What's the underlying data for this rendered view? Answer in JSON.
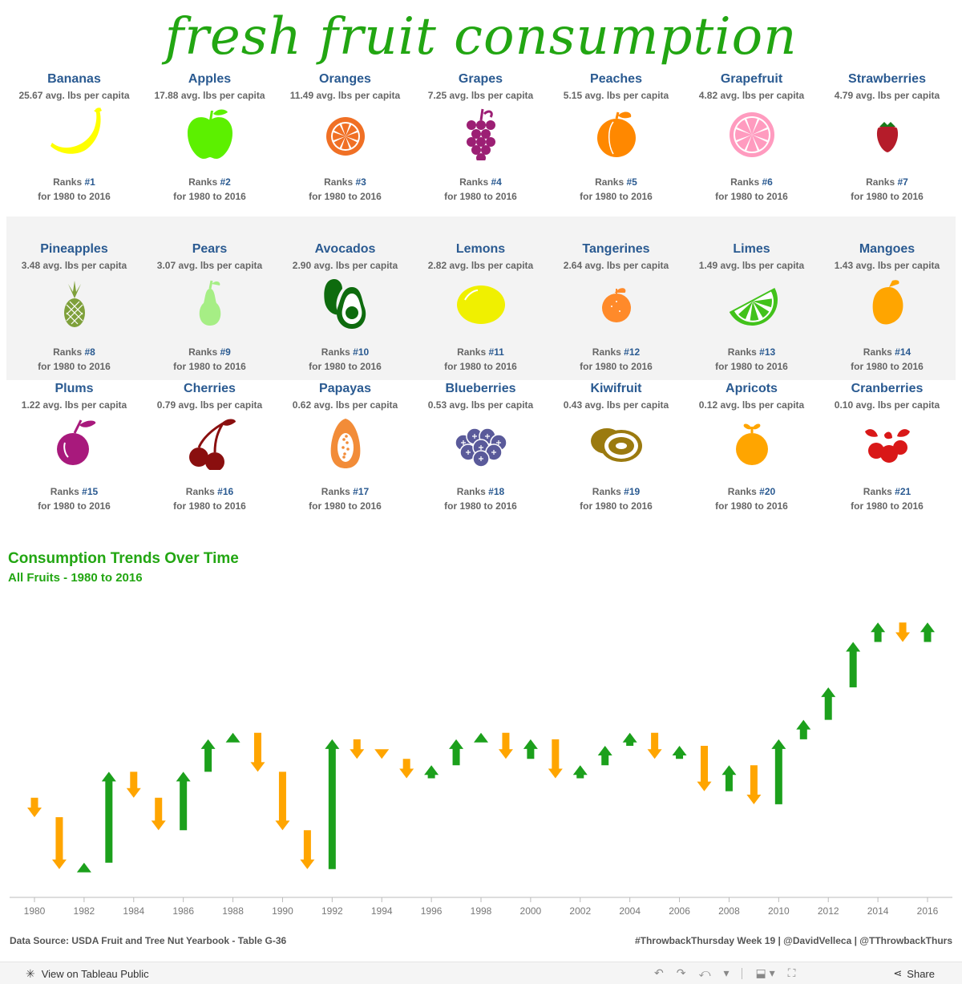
{
  "title": "fresh fruit consumption",
  "fruits": [
    {
      "name": "Bananas",
      "avg": "25.67 avg. lbs per capita",
      "rank_prefix": "Ranks ",
      "rank": "#1",
      "period": "for 1980 to 2016",
      "icon": "banana-icon",
      "color": "#ffff00"
    },
    {
      "name": "Apples",
      "avg": "17.88 avg. lbs per capita",
      "rank_prefix": "Ranks ",
      "rank": "#2",
      "period": "for 1980 to 2016",
      "icon": "apple-icon",
      "color": "#5cf000"
    },
    {
      "name": "Oranges",
      "avg": "11.49 avg. lbs per capita",
      "rank_prefix": "Ranks ",
      "rank": "#3",
      "period": "for 1980 to 2016",
      "icon": "orange-icon",
      "color": "#f07025"
    },
    {
      "name": "Grapes",
      "avg": "7.25 avg. lbs per capita",
      "rank_prefix": "Ranks ",
      "rank": "#4",
      "period": "for 1980 to 2016",
      "icon": "grapes-icon",
      "color": "#9c1f74"
    },
    {
      "name": "Peaches",
      "avg": "5.15 avg. lbs per capita",
      "rank_prefix": "Ranks ",
      "rank": "#5",
      "period": "for 1980 to 2016",
      "icon": "peach-icon",
      "color": "#ff8800"
    },
    {
      "name": "Grapefruit",
      "avg": "4.82 avg. lbs per capita",
      "rank_prefix": "Ranks ",
      "rank": "#6",
      "period": "for 1980 to 2016",
      "icon": "grapefruit-icon",
      "color": "#ff9bbf"
    },
    {
      "name": "Strawberries",
      "avg": "4.79 avg. lbs per capita",
      "rank_prefix": "Ranks ",
      "rank": "#7",
      "period": "for 1980 to 2016",
      "icon": "strawberry-icon",
      "color": "#b51c2a"
    },
    {
      "name": "Pineapples",
      "avg": "3.48 avg. lbs per capita",
      "rank_prefix": "Ranks ",
      "rank": "#8",
      "period": "for 1980 to 2016",
      "icon": "pineapple-icon",
      "color": "#7ea03a"
    },
    {
      "name": "Pears",
      "avg": "3.07 avg. lbs per capita",
      "rank_prefix": "Ranks ",
      "rank": "#9",
      "period": "for 1980 to 2016",
      "icon": "pear-icon",
      "color": "#a6ee85"
    },
    {
      "name": "Avocados",
      "avg": "2.90 avg. lbs per capita",
      "rank_prefix": "Ranks ",
      "rank": "#10",
      "period": "for 1980 to 2016",
      "icon": "avocado-icon",
      "color": "#0e6b0e"
    },
    {
      "name": "Lemons",
      "avg": "2.82 avg. lbs per capita",
      "rank_prefix": "Ranks ",
      "rank": "#11",
      "period": "for 1980 to 2016",
      "icon": "lemon-icon",
      "color": "#f0f000"
    },
    {
      "name": "Tangerines",
      "avg": "2.64 avg. lbs per capita",
      "rank_prefix": "Ranks ",
      "rank": "#12",
      "period": "for 1980 to 2016",
      "icon": "tangerine-icon",
      "color": "#ff8a2a"
    },
    {
      "name": "Limes",
      "avg": "1.49 avg. lbs per capita",
      "rank_prefix": "Ranks ",
      "rank": "#13",
      "period": "for 1980 to 2016",
      "icon": "lime-icon",
      "color": "#42c21b"
    },
    {
      "name": "Mangoes",
      "avg": "1.43 avg. lbs per capita",
      "rank_prefix": "Ranks ",
      "rank": "#14",
      "period": "for 1980 to 2016",
      "icon": "mango-icon",
      "color": "#ffa500"
    },
    {
      "name": "Plums",
      "avg": "1.22 avg. lbs per capita",
      "rank_prefix": "Ranks ",
      "rank": "#15",
      "period": "for 1980 to 2016",
      "icon": "plum-icon",
      "color": "#a8197c"
    },
    {
      "name": "Cherries",
      "avg": "0.79 avg. lbs per capita",
      "rank_prefix": "Ranks ",
      "rank": "#16",
      "period": "for 1980 to 2016",
      "icon": "cherries-icon",
      "color": "#8a0f0f"
    },
    {
      "name": "Papayas",
      "avg": "0.62 avg. lbs per capita",
      "rank_prefix": "Ranks ",
      "rank": "#17",
      "period": "for 1980 to 2016",
      "icon": "papaya-icon",
      "color": "#f28c38"
    },
    {
      "name": "Blueberries",
      "avg": "0.53 avg. lbs per capita",
      "rank_prefix": "Ranks ",
      "rank": "#18",
      "period": "for 1980 to 2016",
      "icon": "blueberries-icon",
      "color": "#5a5a9a"
    },
    {
      "name": "Kiwifruit",
      "avg": "0.43 avg. lbs per capita",
      "rank_prefix": "Ranks ",
      "rank": "#19",
      "period": "for 1980 to 2016",
      "icon": "kiwifruit-icon",
      "color": "#9b7a0f"
    },
    {
      "name": "Apricots",
      "avg": "0.12 avg. lbs per capita",
      "rank_prefix": "Ranks ",
      "rank": "#20",
      "period": "for 1980 to 2016",
      "icon": "apricot-icon",
      "color": "#ffa500"
    },
    {
      "name": "Cranberries",
      "avg": "0.10 avg. lbs per capita",
      "rank_prefix": "Ranks ",
      "rank": "#21",
      "period": "for 1980 to 2016",
      "icon": "cranberries-icon",
      "color": "#d91818"
    }
  ],
  "trend": {
    "title": "Consumption Trends Over Time",
    "subtitle": "All Fruits - 1980 to 2016"
  },
  "chart_data": {
    "type": "bar",
    "subtype": "floating-arrow (year-over-year change)",
    "x_ticks": [
      1980,
      1982,
      1984,
      1986,
      1988,
      1990,
      1992,
      1994,
      1996,
      1998,
      2000,
      2002,
      2004,
      2006,
      2008,
      2010,
      2012,
      2014,
      2016
    ],
    "xlim": [
      1980,
      2016
    ],
    "y_axis_shown": false,
    "colors": {
      "increase": "#1ca01c",
      "decrease": "#ffa500"
    },
    "years": [
      1980,
      1981,
      1982,
      1983,
      1984,
      1985,
      1986,
      1987,
      1988,
      1989,
      1990,
      1991,
      1992,
      1993,
      1994,
      1995,
      1996,
      1997,
      1998,
      1999,
      2000,
      2001,
      2002,
      2003,
      2004,
      2005,
      2006,
      2007,
      2008,
      2009,
      2010,
      2011,
      2012,
      2013,
      2014,
      2015,
      2016
    ],
    "start": [
      106,
      103,
      95,
      96,
      110,
      106,
      101,
      110,
      115,
      116,
      110,
      101,
      95,
      115,
      112,
      112,
      109,
      111,
      115,
      116,
      112,
      115,
      109,
      111,
      114,
      116,
      112,
      114,
      107,
      111,
      105,
      115,
      118,
      123,
      130,
      133,
      130
    ],
    "end": [
      103,
      95,
      96,
      110,
      106,
      101,
      110,
      115,
      116,
      110,
      101,
      95,
      115,
      112,
      112,
      109,
      111,
      115,
      116,
      112,
      115,
      109,
      111,
      114,
      116,
      112,
      114,
      107,
      111,
      105,
      115,
      118,
      123,
      130,
      133,
      130,
      133
    ]
  },
  "footer": {
    "source": "Data Source: USDA Fruit and Tree Nut Yearbook - Table G-36",
    "credits": "#ThrowbackThursday Week 19 | @DavidVelleca | @TThrowbackThurs"
  },
  "toolbar": {
    "view_label": "View on Tableau Public",
    "share_label": "Share"
  }
}
